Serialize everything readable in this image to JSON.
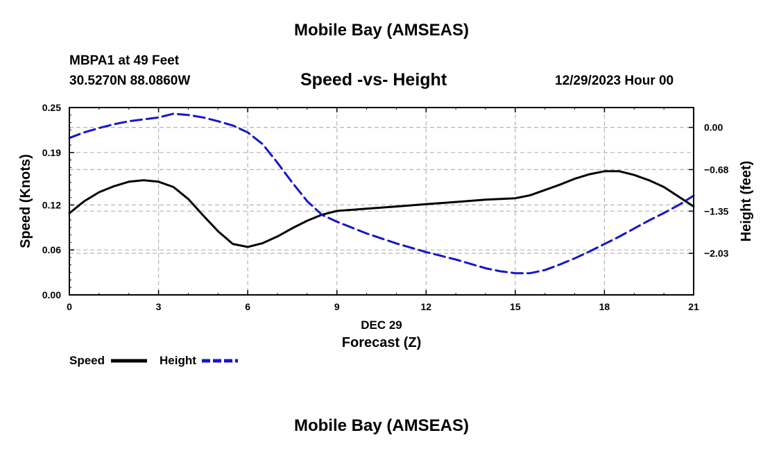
{
  "page": {
    "title_top": "Mobile Bay (AMSEAS)",
    "title_bottom": "Mobile Bay (AMSEAS)",
    "station": "MBPA1 at 49 Feet",
    "coordinates": "30.5270N  88.0860W",
    "subtitle": "Speed -vs- Height",
    "datetime": "12/29/2023 Hour 00"
  },
  "chart_data": {
    "type": "line",
    "title": "Speed -vs- Height",
    "xlabel": "Forecast (Z)",
    "xlabel_date": "DEC 29",
    "ylabel": "Speed (Knots)",
    "y2label": "Height (feet)",
    "xlim": [
      0,
      21
    ],
    "ylim": [
      0,
      0.25
    ],
    "y2lim": [
      -2.7,
      0.32
    ],
    "x_ticks": [
      "0",
      "3",
      "6",
      "9",
      "12",
      "15",
      "18",
      "21"
    ],
    "y_ticks": [
      "0.00",
      "0.06",
      "0.12",
      "0.19",
      "0.25"
    ],
    "y2_ticks": [
      "0.00",
      "-0.68",
      "-1.35",
      "-2.03"
    ],
    "grid": true,
    "legend": [
      "Speed",
      "Height"
    ],
    "legend_position": "bottom-left",
    "series": [
      {
        "name": "Speed",
        "axis": "left",
        "color": "#000000",
        "dash": "solid",
        "x": [
          0,
          0.5,
          1,
          1.5,
          2,
          2.5,
          3,
          3.5,
          4,
          4.5,
          5,
          5.5,
          6,
          6.5,
          7,
          7.5,
          8,
          8.5,
          9,
          10,
          11,
          12,
          13,
          14,
          15,
          15.5,
          16,
          16.5,
          17,
          17.5,
          18,
          18.5,
          19,
          19.5,
          20,
          20.5,
          21
        ],
        "values": [
          0.109,
          0.125,
          0.137,
          0.145,
          0.151,
          0.153,
          0.151,
          0.144,
          0.128,
          0.106,
          0.085,
          0.068,
          0.064,
          0.069,
          0.078,
          0.089,
          0.099,
          0.107,
          0.112,
          0.115,
          0.118,
          0.121,
          0.124,
          0.127,
          0.129,
          0.133,
          0.14,
          0.147,
          0.155,
          0.161,
          0.165,
          0.165,
          0.16,
          0.153,
          0.144,
          0.131,
          0.118
        ]
      },
      {
        "name": "Height",
        "axis": "right",
        "color": "#1515cc",
        "dash": "dashed",
        "x": [
          0,
          0.5,
          1,
          1.5,
          2,
          2.5,
          3,
          3.5,
          4,
          4.5,
          5,
          5.5,
          6,
          6.5,
          7,
          7.5,
          8,
          8.5,
          9,
          10,
          11,
          12,
          13,
          14,
          14.5,
          15,
          15.5,
          16,
          16.5,
          17,
          17.5,
          18,
          18.5,
          19,
          19.5,
          20,
          20.5,
          21
        ],
        "values": [
          -0.17,
          -0.08,
          -0.01,
          0.05,
          0.1,
          0.13,
          0.16,
          0.22,
          0.2,
          0.16,
          0.1,
          0.03,
          -0.08,
          -0.27,
          -0.57,
          -0.89,
          -1.19,
          -1.41,
          -1.52,
          -1.71,
          -1.87,
          -2.01,
          -2.13,
          -2.27,
          -2.32,
          -2.35,
          -2.35,
          -2.3,
          -2.21,
          -2.11,
          -2.0,
          -1.88,
          -1.76,
          -1.63,
          -1.5,
          -1.38,
          -1.25,
          -1.1
        ]
      }
    ]
  }
}
